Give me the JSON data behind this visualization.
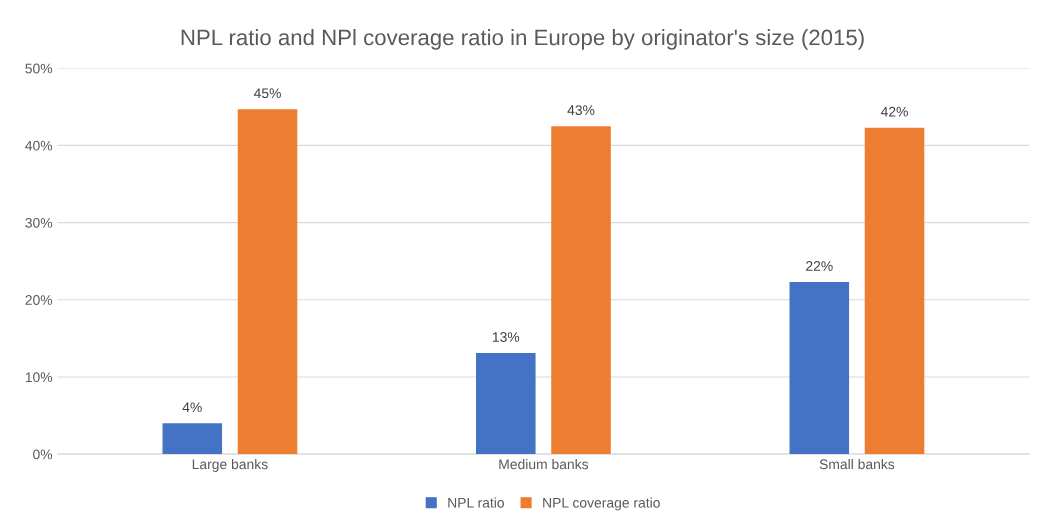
{
  "chart_data": {
    "type": "bar",
    "title": "NPL ratio and NPl coverage ratio in Europe by originator's size (2015)",
    "categories": [
      "Large banks",
      "Medium banks",
      "Small banks"
    ],
    "series": [
      {
        "name": "NPL ratio",
        "color": "#4472c4",
        "values": [
          4.0,
          13.1,
          22.3
        ],
        "value_labels": [
          "4%",
          "13%",
          "22%"
        ]
      },
      {
        "name": "NPL coverage ratio",
        "color": "#ed7d31",
        "values": [
          44.7,
          42.5,
          42.3
        ],
        "value_labels": [
          "45%",
          "43%",
          "42%"
        ]
      }
    ],
    "ylim": [
      0,
      50
    ],
    "yticks": [
      {
        "value": 0,
        "label": "0%"
      },
      {
        "value": 10,
        "label": "10%"
      },
      {
        "value": 20,
        "label": "20%"
      },
      {
        "value": 30,
        "label": "30%"
      },
      {
        "value": 40,
        "label": "40%"
      },
      {
        "value": 50,
        "label": "50%"
      }
    ],
    "grid": "y",
    "legend": "bottom"
  }
}
